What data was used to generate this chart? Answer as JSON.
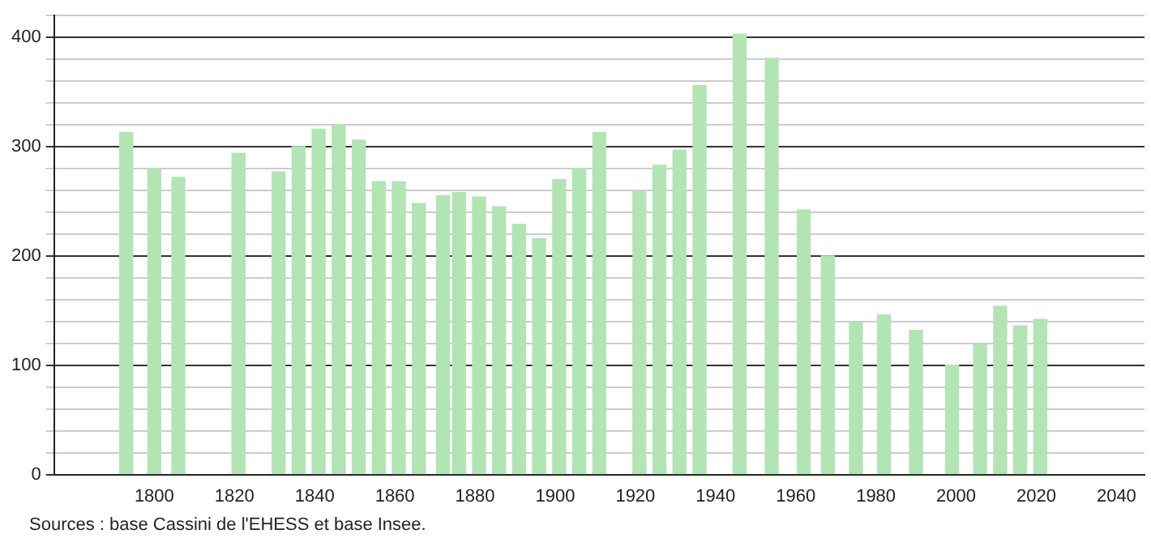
{
  "chart_data": {
    "type": "bar",
    "x": [
      1793,
      1800,
      1806,
      1821,
      1831,
      1836,
      1841,
      1846,
      1851,
      1856,
      1861,
      1866,
      1872,
      1876,
      1881,
      1886,
      1891,
      1896,
      1901,
      1906,
      1911,
      1921,
      1926,
      1931,
      1936,
      1946,
      1954,
      1962,
      1968,
      1975,
      1982,
      1990,
      1999,
      2006,
      2011,
      2016,
      2021
    ],
    "values": [
      313,
      280,
      272,
      294,
      277,
      300,
      316,
      320,
      306,
      268,
      268,
      248,
      255,
      258,
      254,
      245,
      229,
      216,
      270,
      280,
      313,
      259,
      283,
      297,
      356,
      403,
      381,
      242,
      200,
      139,
      146,
      132,
      100,
      119,
      154,
      136,
      142
    ],
    "color": "#b3e4b3",
    "xlim": [
      1775,
      2047
    ],
    "xticks": [
      1800,
      1820,
      1840,
      1860,
      1880,
      1900,
      1920,
      1940,
      1960,
      1980,
      2000,
      2020,
      2040
    ],
    "ylim": [
      0,
      420
    ],
    "yticks": [
      0,
      {
        "value": 20,
        "label": null
      },
      {
        "value": 40,
        "label": null
      },
      {
        "value": 60,
        "label": null
      },
      {
        "value": 80,
        "label": null
      },
      100,
      {
        "value": 120,
        "label": null
      },
      {
        "value": 140,
        "label": null
      },
      {
        "value": 160,
        "label": null
      },
      {
        "value": 180,
        "label": null
      },
      200,
      {
        "value": 220,
        "label": null
      },
      {
        "value": 240,
        "label": null
      },
      {
        "value": 260,
        "label": null
      },
      {
        "value": 280,
        "label": null
      },
      300,
      {
        "value": 320,
        "label": null
      },
      {
        "value": 340,
        "label": null
      },
      {
        "value": 360,
        "label": null
      },
      {
        "value": 380,
        "label": null
      },
      400,
      {
        "value": 420,
        "label": null
      }
    ],
    "grid": "y",
    "annotations": [
      "Sources : base Cassini de l'EHESS et base Insee."
    ]
  }
}
